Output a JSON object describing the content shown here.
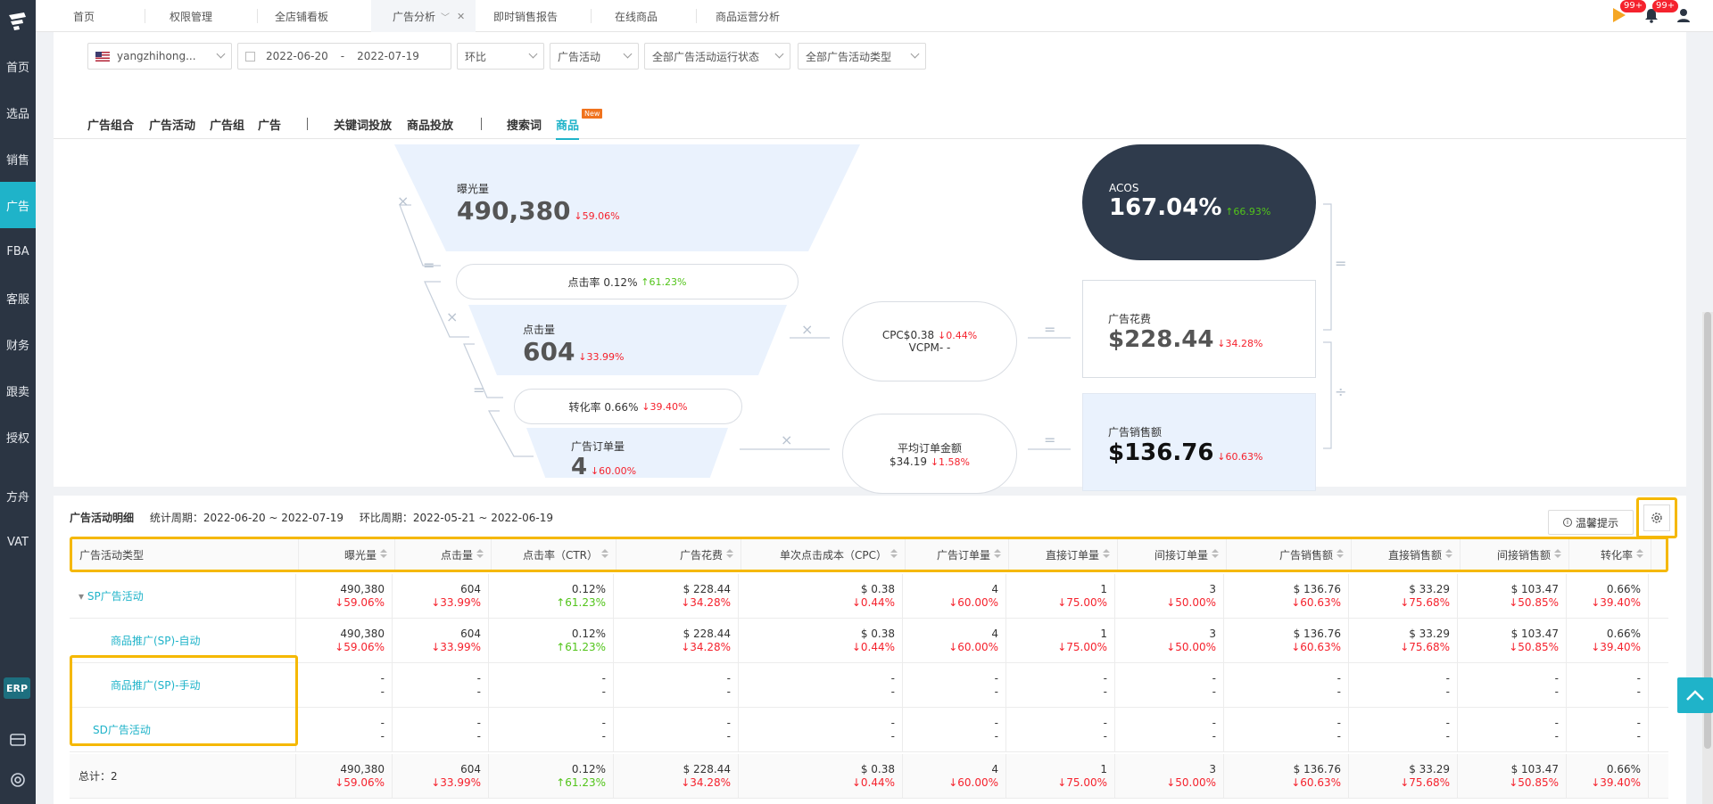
{
  "sidebar": {
    "items": [
      "首页",
      "选品",
      "销售",
      "广告",
      "FBA",
      "客服",
      "财务",
      "跟卖",
      "授权",
      "方舟",
      "VAT"
    ],
    "active_index": 3,
    "erp": "ERP"
  },
  "tabs": [
    {
      "label": "首页"
    },
    {
      "label": "权限管理"
    },
    {
      "label": "全店铺看板"
    },
    {
      "label": "广告分析"
    },
    {
      "label": "即时销售报告"
    },
    {
      "label": "在线商品"
    },
    {
      "label": "商品运营分析"
    }
  ],
  "topright": {
    "badge1": "99+",
    "badge2": "99+"
  },
  "filters": {
    "account": "yangzhihong...",
    "date_start": "2022-06-20",
    "date_sep": "-",
    "date_end": "2022-07-19",
    "compare": "环比",
    "type": "广告活动",
    "status": "全部广告活动运行状态",
    "ad_type": "全部广告活动类型"
  },
  "subtabs": {
    "group1": [
      "广告组合",
      "广告活动",
      "广告组",
      "广告"
    ],
    "group2": [
      "关键词投放",
      "商品投放"
    ],
    "group3": [
      "搜索词",
      "商品"
    ],
    "new_tag": "New"
  },
  "funnel": {
    "impressions": {
      "label": "曝光量",
      "value": "490,380",
      "change": "↓59.06%"
    },
    "ctr": {
      "label": "点击率 0.12%",
      "change": "↑61.23%"
    },
    "clicks": {
      "label": "点击量",
      "value": "604",
      "change": "↓33.99%"
    },
    "cvr": {
      "label": "转化率 0.66%",
      "change": "↓39.40%"
    },
    "orders": {
      "label": "广告订单量",
      "value": "4",
      "change": "↓60.00%"
    },
    "cpc": {
      "label": "CPC$0.38",
      "change": "↓0.44%",
      "vcpm": "VCPM-  -"
    },
    "aov": {
      "label": "平均订单金额",
      "value": "$34.19",
      "change": "↓1.58%"
    },
    "acos": {
      "label": "ACOS",
      "value": "167.04%",
      "change": "↑66.93%"
    },
    "spend": {
      "label": "广告花费",
      "value": "$228.44",
      "change": "↓34.28%"
    },
    "sales": {
      "label": "广告销售额",
      "value": "$136.76",
      "change": "↓60.63%"
    },
    "ops": {
      "times": "×",
      "eq": "=",
      "div": "÷"
    }
  },
  "table": {
    "title": "广告活动明细",
    "period": "统计周期：2022-06-20 ~ 2022-07-19",
    "compare_period": "环比周期：2022-05-21 ~ 2022-06-19",
    "tip": "温馨提示",
    "columns": [
      "广告活动类型",
      "曝光量",
      "点击量",
      "点击率（CTR）",
      "广告花费",
      "单次点击成本（CPC）",
      "广告订单量",
      "直接订单量",
      "间接订单量",
      "广告销售额",
      "直接销售额",
      "间接销售额",
      "转化率"
    ],
    "rows": [
      {
        "name": "SP广告活动",
        "cells": [
          [
            "490,380",
            "↓59.06%"
          ],
          [
            "604",
            "↓33.99%"
          ],
          [
            "0.12%",
            "↑61.23%"
          ],
          [
            "$ 228.44",
            "↓34.28%"
          ],
          [
            "$ 0.38",
            "↓0.44%"
          ],
          [
            "4",
            "↓60.00%"
          ],
          [
            "1",
            "↓75.00%"
          ],
          [
            "3",
            "↓50.00%"
          ],
          [
            "$ 136.76",
            "↓60.63%"
          ],
          [
            "$ 33.29",
            "↓75.68%"
          ],
          [
            "$ 103.47",
            "↓50.85%"
          ],
          [
            "0.66%",
            "↓39.40%"
          ]
        ]
      },
      {
        "name": "商品推广(SP)-自动",
        "cells": [
          [
            "490,380",
            "↓59.06%"
          ],
          [
            "604",
            "↓33.99%"
          ],
          [
            "0.12%",
            "↑61.23%"
          ],
          [
            "$ 228.44",
            "↓34.28%"
          ],
          [
            "$ 0.38",
            "↓0.44%"
          ],
          [
            "4",
            "↓60.00%"
          ],
          [
            "1",
            "↓75.00%"
          ],
          [
            "3",
            "↓50.00%"
          ],
          [
            "$ 136.76",
            "↓60.63%"
          ],
          [
            "$ 33.29",
            "↓75.68%"
          ],
          [
            "$ 103.47",
            "↓50.85%"
          ],
          [
            "0.66%",
            "↓39.40%"
          ]
        ]
      },
      {
        "name": "商品推广(SP)-手动",
        "cells": [
          [
            "-",
            "-"
          ],
          [
            "-",
            "-"
          ],
          [
            "-",
            "-"
          ],
          [
            "-",
            "-"
          ],
          [
            "-",
            "-"
          ],
          [
            "-",
            "-"
          ],
          [
            "-",
            "-"
          ],
          [
            "-",
            "-"
          ],
          [
            "-",
            "-"
          ],
          [
            "-",
            "-"
          ],
          [
            "-",
            "-"
          ],
          [
            "-",
            "-"
          ]
        ]
      },
      {
        "name": "SD广告活动",
        "cells": [
          [
            "-",
            "-"
          ],
          [
            "-",
            "-"
          ],
          [
            "-",
            "-"
          ],
          [
            "-",
            "-"
          ],
          [
            "-",
            "-"
          ],
          [
            "-",
            "-"
          ],
          [
            "-",
            "-"
          ],
          [
            "-",
            "-"
          ],
          [
            "-",
            "-"
          ],
          [
            "-",
            "-"
          ],
          [
            "-",
            "-"
          ],
          [
            "-",
            "-"
          ]
        ]
      },
      {
        "name": "总计：2",
        "cells": [
          [
            "490,380",
            "↓59.06%"
          ],
          [
            "604",
            "↓33.99%"
          ],
          [
            "0.12%",
            "↑61.23%"
          ],
          [
            "$ 228.44",
            "↓34.28%"
          ],
          [
            "$ 0.38",
            "↓0.44%"
          ],
          [
            "4",
            "↓60.00%"
          ],
          [
            "1",
            "↓75.00%"
          ],
          [
            "3",
            "↓50.00%"
          ],
          [
            "$ 136.76",
            "↓60.63%"
          ],
          [
            "$ 33.29",
            "↓75.68%"
          ],
          [
            "$ 103.47",
            "↓50.85%"
          ],
          [
            "0.66%",
            "↓39.40%"
          ]
        ]
      }
    ]
  },
  "colors": {
    "accent": "#1fb3c9",
    "sidebar": "#2b3543",
    "highlight": "#f5b800",
    "down": "#f5222d",
    "up": "#52c41a",
    "acos_bg": "#2f3b4c"
  }
}
